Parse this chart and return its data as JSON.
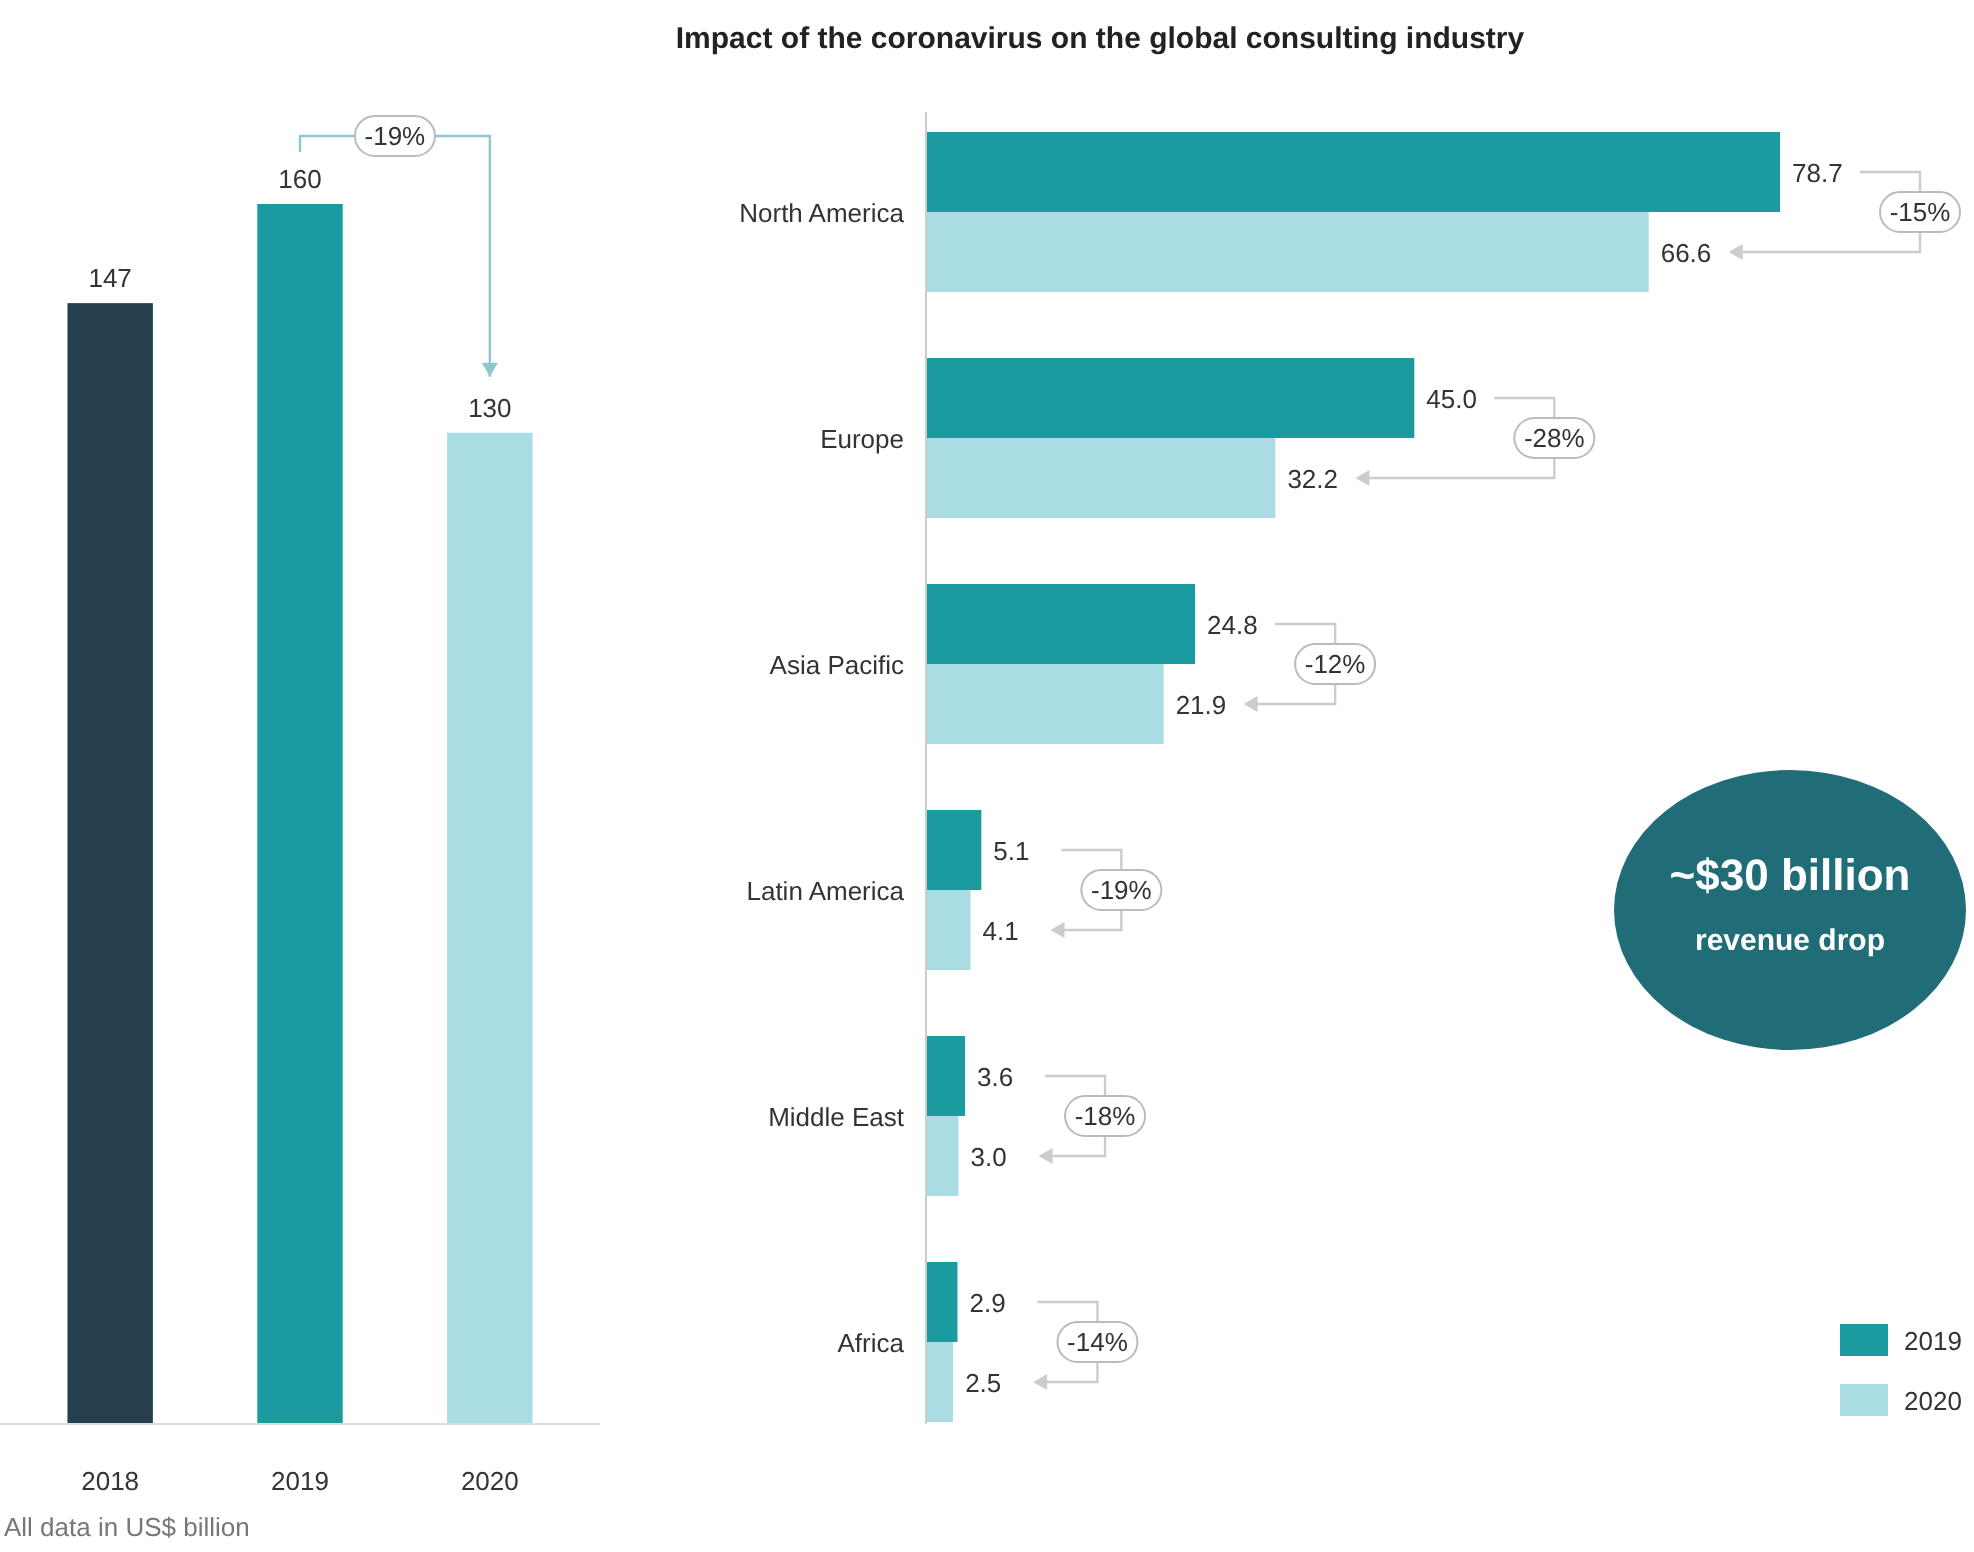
{
  "chart_data": [
    {
      "type": "bar",
      "categories": [
        "2018",
        "2019",
        "2020"
      ],
      "values": [
        147,
        160,
        130
      ],
      "colors": [
        "#26404f",
        "#1b9aa0",
        "#a9dde3"
      ],
      "data_labels": true,
      "annotations": [
        "-19%",
        "All data in US$ billion"
      ]
    },
    {
      "type": "bar",
      "orientation": "horizontal",
      "title": "Impact of the coronavirus on the global consulting industry",
      "categories": [
        "North America",
        "Europe",
        "Asia Pacific",
        "Latin America",
        "Middle East",
        "Africa"
      ],
      "series": [
        {
          "name": "2019",
          "color": "#1b9aa0",
          "values": [
            78.7,
            45.0,
            24.8,
            5.1,
            3.6,
            2.9
          ],
          "value_labels": [
            "78.7",
            "45.0",
            "24.8",
            "5.1",
            "3.6",
            "2.9"
          ]
        },
        {
          "name": "2020",
          "color": "#a9dde3",
          "values": [
            66.6,
            32.2,
            21.9,
            4.1,
            3.0,
            2.5
          ],
          "value_labels": [
            "66.6",
            "32.2",
            "21.9",
            "4.1",
            "3.0",
            "2.5"
          ]
        }
      ],
      "data_labels": true,
      "legend": "bottom right",
      "annotations": [
        "-15%",
        "-28%",
        "-12%",
        "-19%",
        "-18%",
        "-14%",
        "~$30 billion",
        "revenue drop"
      ]
    }
  ]
}
